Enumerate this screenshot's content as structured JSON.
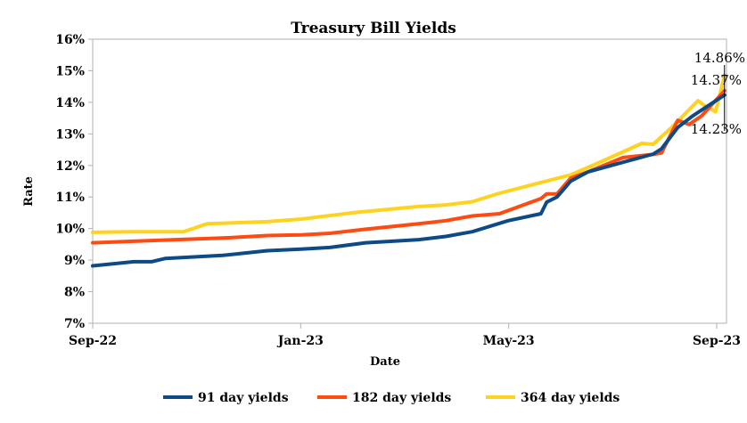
{
  "chart_data": {
    "type": "line",
    "title": "Treasury Bill Yields",
    "xlabel": "Date",
    "ylabel": "Rate",
    "x_unit": "months since Sep-22",
    "xlim": [
      0,
      12.2
    ],
    "ylim": [
      7,
      16
    ],
    "y_ticks": [
      7,
      8,
      9,
      10,
      11,
      12,
      13,
      14,
      15,
      16
    ],
    "y_tick_labels": [
      "7%",
      "8%",
      "9%",
      "10%",
      "11%",
      "12%",
      "13%",
      "14%",
      "15%",
      "16%"
    ],
    "x_ticks": [
      0,
      4,
      8,
      12
    ],
    "x_tick_labels": [
      "Sep-22",
      "Jan-23",
      "May-23",
      "Sep-23"
    ],
    "grid": false,
    "legend_position": "bottom",
    "series": [
      {
        "name": "91 day yields",
        "color": "#0e4a86",
        "points": [
          [
            0,
            8.82
          ],
          [
            0.79,
            8.95
          ],
          [
            1.13,
            8.95
          ],
          [
            1.39,
            9.05
          ],
          [
            2.5,
            9.15
          ],
          [
            3.36,
            9.3
          ],
          [
            4.01,
            9.35
          ],
          [
            4.56,
            9.4
          ],
          [
            5.25,
            9.55
          ],
          [
            6.27,
            9.65
          ],
          [
            6.79,
            9.75
          ],
          [
            7.3,
            9.9
          ],
          [
            7.99,
            10.25
          ],
          [
            8.62,
            10.47
          ],
          [
            8.73,
            10.84
          ],
          [
            8.93,
            11.0
          ],
          [
            9.19,
            11.5
          ],
          [
            9.53,
            11.8
          ],
          [
            10.2,
            12.1
          ],
          [
            10.78,
            12.36
          ],
          [
            10.94,
            12.53
          ],
          [
            11.25,
            13.2
          ],
          [
            11.54,
            13.57
          ],
          [
            12.15,
            14.23
          ]
        ]
      },
      {
        "name": "182 day yields",
        "color": "#ff4a12",
        "points": [
          [
            0,
            9.55
          ],
          [
            1.13,
            9.62
          ],
          [
            2.5,
            9.7
          ],
          [
            3.36,
            9.78
          ],
          [
            4.01,
            9.8
          ],
          [
            4.56,
            9.85
          ],
          [
            5.25,
            9.98
          ],
          [
            6.27,
            10.15
          ],
          [
            6.79,
            10.25
          ],
          [
            7.3,
            10.4
          ],
          [
            7.82,
            10.47
          ],
          [
            8.62,
            10.95
          ],
          [
            8.73,
            11.1
          ],
          [
            8.93,
            11.1
          ],
          [
            9.19,
            11.6
          ],
          [
            9.53,
            11.8
          ],
          [
            10.2,
            12.25
          ],
          [
            10.78,
            12.35
          ],
          [
            10.94,
            12.4
          ],
          [
            11.25,
            13.43
          ],
          [
            11.47,
            13.3
          ],
          [
            11.71,
            13.57
          ],
          [
            12.15,
            14.37
          ]
        ]
      },
      {
        "name": "364 day yields",
        "color": "#ffd21f",
        "points": [
          [
            0,
            9.88
          ],
          [
            0.79,
            9.9
          ],
          [
            1.75,
            9.9
          ],
          [
            2.2,
            10.15
          ],
          [
            3.36,
            10.22
          ],
          [
            4.01,
            10.3
          ],
          [
            5.0,
            10.5
          ],
          [
            6.27,
            10.7
          ],
          [
            6.79,
            10.75
          ],
          [
            7.3,
            10.85
          ],
          [
            7.82,
            11.12
          ],
          [
            8.62,
            11.46
          ],
          [
            9.19,
            11.7
          ],
          [
            9.82,
            12.15
          ],
          [
            10.56,
            12.7
          ],
          [
            10.78,
            12.67
          ],
          [
            11.13,
            13.2
          ],
          [
            11.64,
            14.05
          ],
          [
            11.76,
            13.9
          ],
          [
            11.98,
            13.7
          ],
          [
            12.15,
            14.86
          ]
        ]
      }
    ],
    "annotations": [
      "14.86%",
      "14.37%",
      "14.23%"
    ]
  }
}
